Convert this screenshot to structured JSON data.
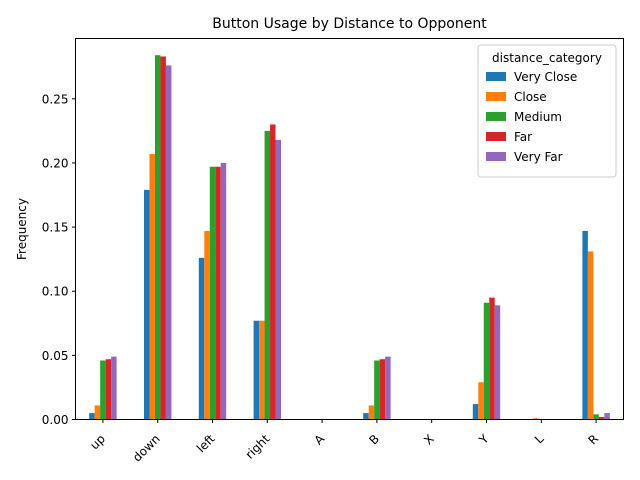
{
  "chart_data": {
    "type": "bar",
    "title": "Button Usage by Distance to Opponent",
    "xlabel": "",
    "ylabel": "Frequency",
    "ylim": [
      0,
      0.297
    ],
    "yticks": [
      "0.00",
      "0.05",
      "0.10",
      "0.15",
      "0.20",
      "0.25"
    ],
    "ytick_values": [
      0,
      0.05,
      0.1,
      0.15,
      0.2,
      0.25
    ],
    "categories": [
      "up",
      "down",
      "left",
      "right",
      "A",
      "B",
      "X",
      "Y",
      "L",
      "R"
    ],
    "legend": {
      "title": "distance_category",
      "placement": "top-right"
    },
    "grid": false,
    "series": [
      {
        "name": "Very Close",
        "color": "#1f77b4",
        "values": [
          0.005,
          0.179,
          0.126,
          0.077,
          0.0,
          0.005,
          0.0,
          0.012,
          0.0,
          0.147
        ]
      },
      {
        "name": "Close",
        "color": "#ff7f0e",
        "values": [
          0.011,
          0.207,
          0.147,
          0.077,
          0.0,
          0.011,
          0.0,
          0.029,
          0.001,
          0.131
        ]
      },
      {
        "name": "Medium",
        "color": "#2ca02c",
        "values": [
          0.046,
          0.284,
          0.197,
          0.225,
          0.0,
          0.046,
          0.0,
          0.091,
          0.0,
          0.004
        ]
      },
      {
        "name": "Far",
        "color": "#d62728",
        "values": [
          0.047,
          0.283,
          0.197,
          0.23,
          0.0,
          0.047,
          0.0,
          0.095,
          0.0,
          0.002
        ]
      },
      {
        "name": "Very Far",
        "color": "#9467bd",
        "values": [
          0.049,
          0.276,
          0.2,
          0.218,
          0.0,
          0.049,
          0.0,
          0.089,
          0.0,
          0.005
        ]
      }
    ]
  }
}
